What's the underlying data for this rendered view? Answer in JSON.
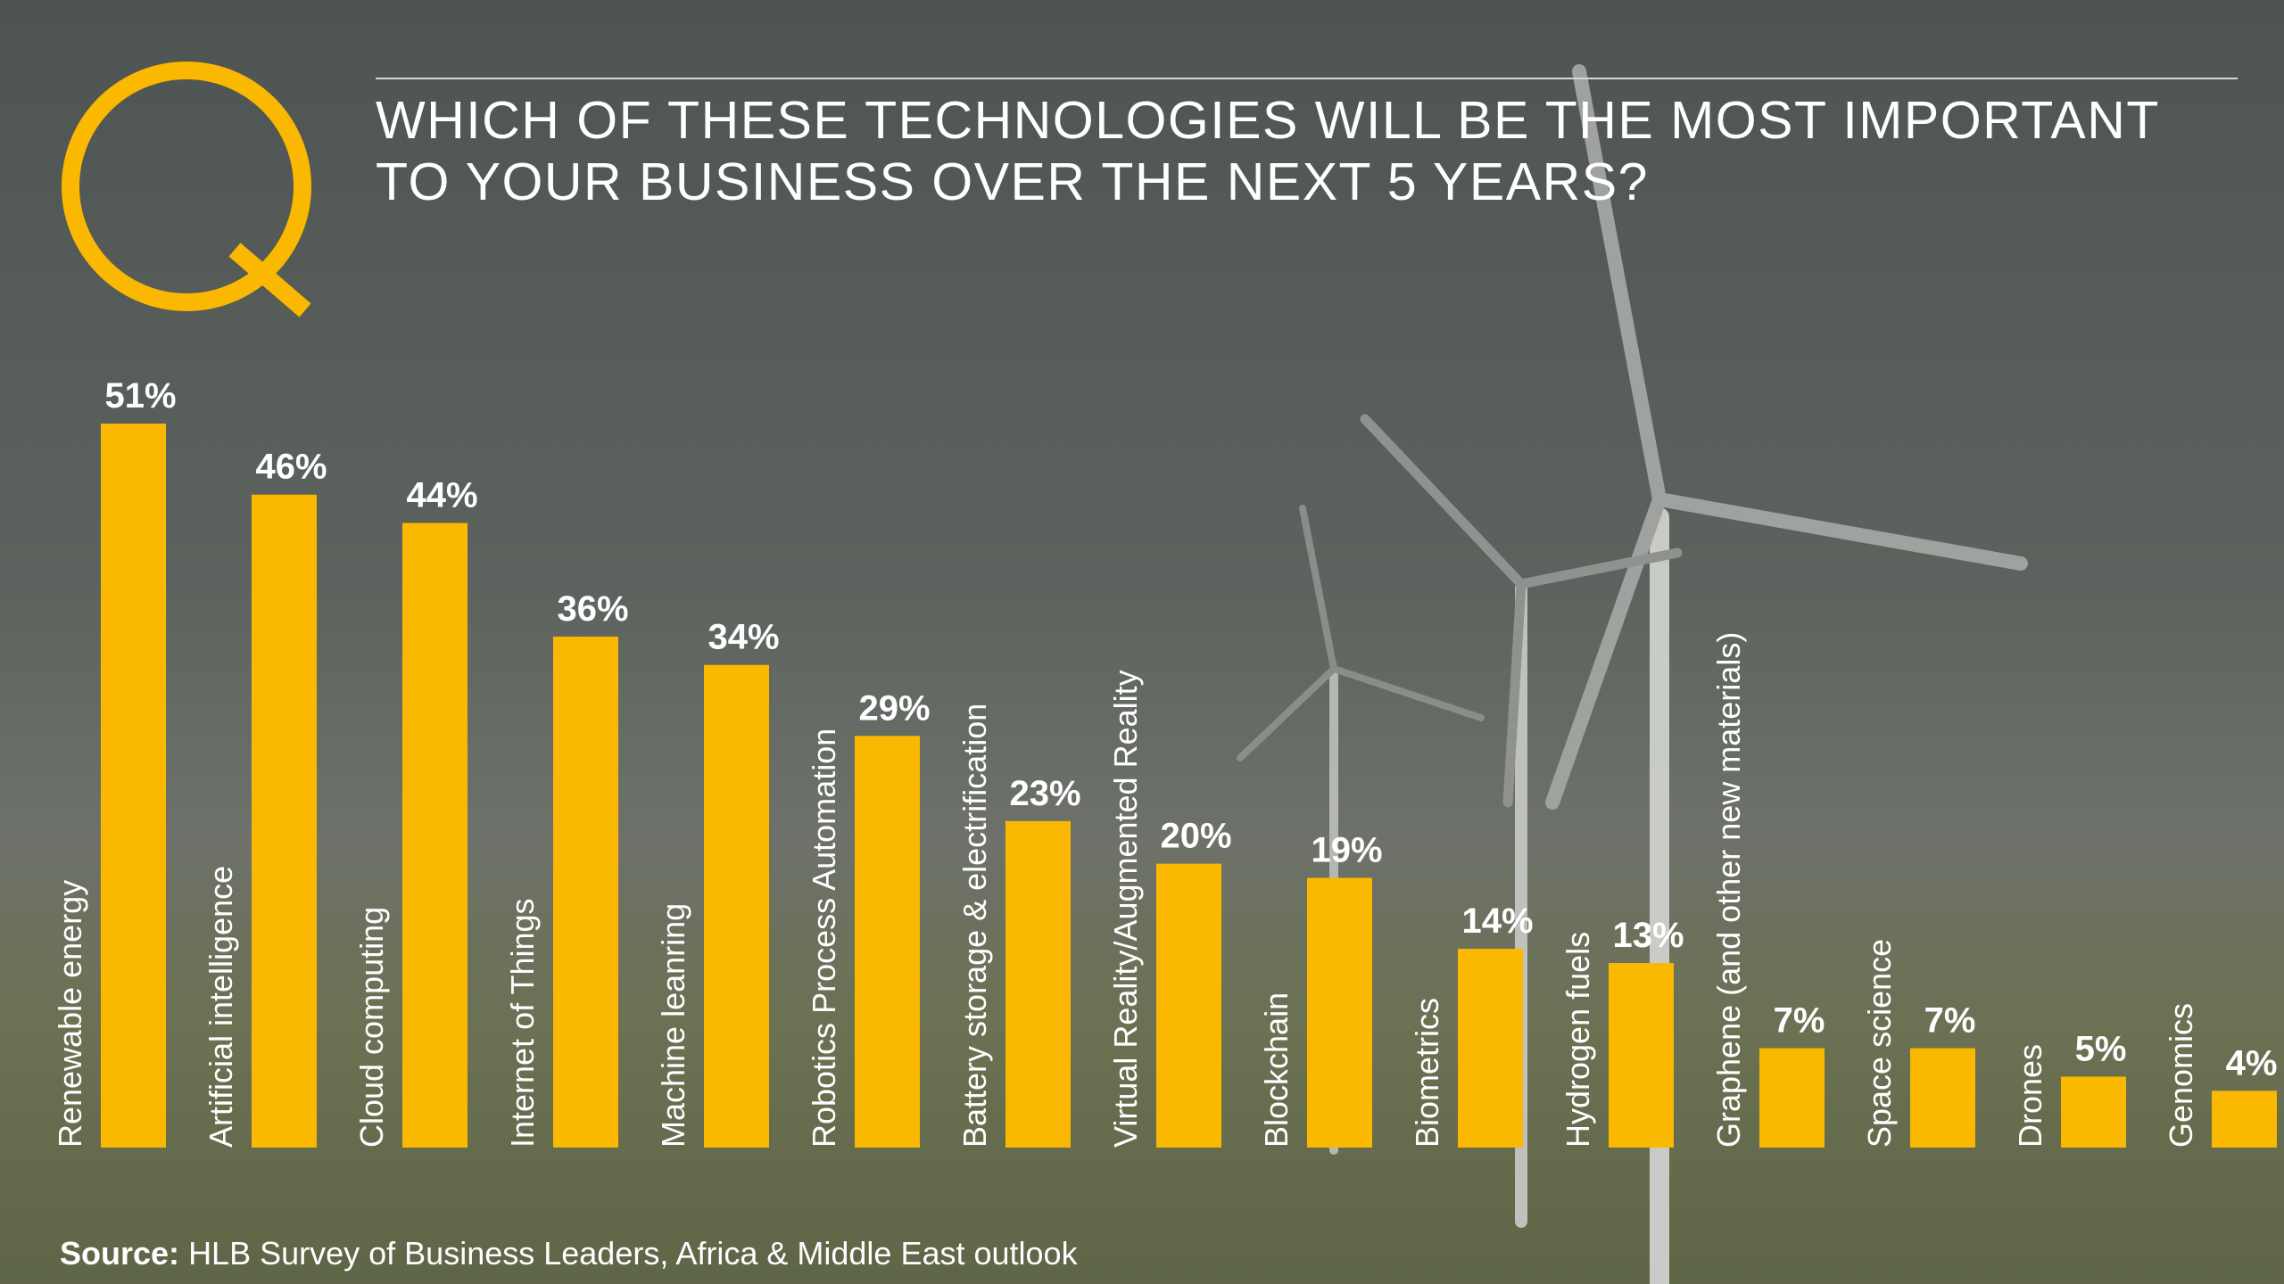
{
  "chart_data": {
    "type": "bar",
    "title": [
      "WHICH OF THESE TECHNOLOGIES WILL BE THE MOST IMPORTANT",
      "TO YOUR BUSINESS OVER THE NEXT 5 YEARS?"
    ],
    "categories": [
      "Renewable energy",
      "Artificial intelligence",
      "Cloud computing",
      "Internet of Things",
      "Machine leanring",
      "Robotics Process Automation",
      "Battery storage & electrification",
      "Virtual Reality/Augmented Reality",
      "Blockchain",
      "Biometrics",
      "Hydrogen fuels",
      "Graphene (and other new materials)",
      "Space science",
      "Drones",
      "Genomics"
    ],
    "values": [
      51,
      46,
      44,
      36,
      34,
      29,
      23,
      20,
      19,
      14,
      13,
      7,
      7,
      5,
      4
    ],
    "value_labels": [
      "51%",
      "46%",
      "44%",
      "36%",
      "34%",
      "29%",
      "23%",
      "20%",
      "19%",
      "14%",
      "13%",
      "7%",
      "7%",
      "5%",
      "4%"
    ],
    "color": "#fbb800",
    "source_label": "Source:",
    "source": "HLB Survey of Business Leaders, Africa & Middle East outlook"
  }
}
